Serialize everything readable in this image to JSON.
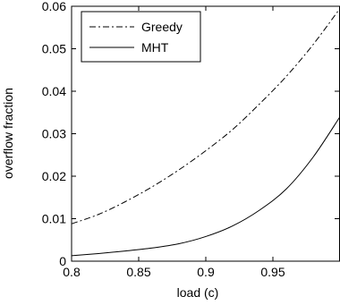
{
  "chart_data": {
    "type": "line",
    "title": "",
    "xlabel": "load (c)",
    "ylabel": "overflow fraction",
    "xlim": [
      0.8,
      1.0
    ],
    "ylim": [
      0,
      0.06
    ],
    "xticks": [
      0.8,
      0.85,
      0.9,
      0.95
    ],
    "xtick_labels": [
      "0.8",
      "0.85",
      "0.9",
      "0.95"
    ],
    "yticks": [
      0,
      0.01,
      0.02,
      0.03,
      0.04,
      0.05,
      0.06
    ],
    "ytick_labels": [
      "0",
      "0.01",
      "0.02",
      "0.03",
      "0.04",
      "0.05",
      "0.06"
    ],
    "grid": false,
    "legend_position": "top-left",
    "series": [
      {
        "name": "Greedy",
        "style": "dash-dot",
        "color": "#000000",
        "x": [
          0.8,
          0.82,
          0.84,
          0.86,
          0.88,
          0.9,
          0.92,
          0.94,
          0.96,
          0.98,
          1.0
        ],
        "y": [
          0.0088,
          0.011,
          0.014,
          0.0175,
          0.0215,
          0.026,
          0.031,
          0.037,
          0.0435,
          0.051,
          0.0595
        ]
      },
      {
        "name": "MHT",
        "style": "solid",
        "color": "#000000",
        "x": [
          0.8,
          0.82,
          0.84,
          0.86,
          0.88,
          0.9,
          0.92,
          0.94,
          0.96,
          0.98,
          1.0
        ],
        "y": [
          0.0013,
          0.0018,
          0.0024,
          0.0031,
          0.0041,
          0.0058,
          0.0083,
          0.012,
          0.017,
          0.0245,
          0.034
        ]
      }
    ]
  }
}
